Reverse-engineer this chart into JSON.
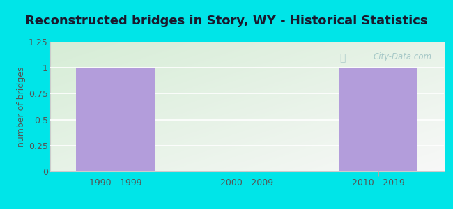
{
  "title": "Reconstructed bridges in Story, WY - Historical Statistics",
  "categories": [
    "1990 - 1999",
    "2000 - 2009",
    "2010 - 2019"
  ],
  "values": [
    1,
    0,
    1
  ],
  "bar_color": "#b39ddb",
  "bar_width": 0.6,
  "ylabel": "number of bridges",
  "ylim": [
    0,
    1.25
  ],
  "yticks": [
    0,
    0.25,
    0.5,
    0.75,
    1,
    1.25
  ],
  "ytick_labels": [
    "0",
    "0.25",
    "0.5",
    "0.75",
    "1",
    "1.25"
  ],
  "background_outer": "#00e5e8",
  "title_color": "#1a1a2e",
  "tick_color": "#555555",
  "ylabel_color": "#555555",
  "watermark": "City-Data.com",
  "title_fontsize": 13,
  "ylabel_fontsize": 9,
  "tick_fontsize": 9,
  "grid_color": "#ffffff",
  "plot_bg_top_left": "#d6edd6",
  "plot_bg_bottom_right": "#f8f8f8"
}
